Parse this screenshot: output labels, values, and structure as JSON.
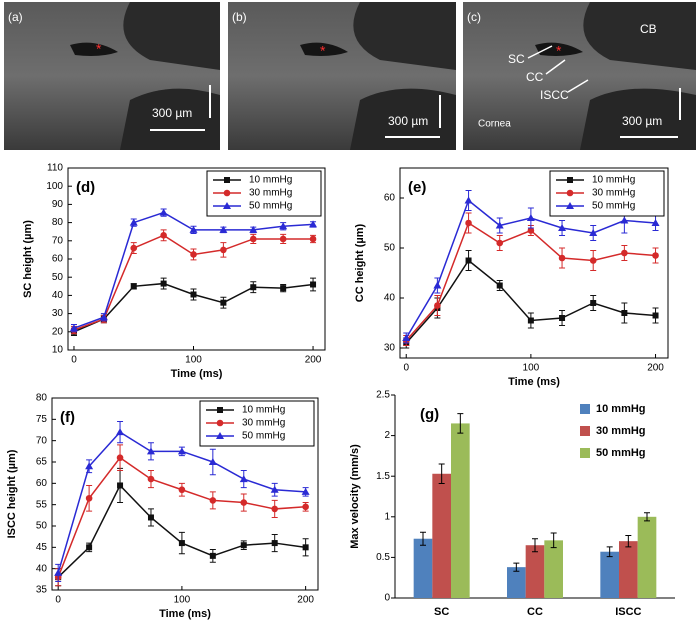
{
  "images": [
    {
      "label": "(a)",
      "asterisk": "*",
      "scale_bar": "300 µm"
    },
    {
      "label": "(b)",
      "asterisk": "*",
      "scale_bar": "300 µm"
    },
    {
      "label": "(c)",
      "asterisk": "*",
      "scale_bar": "300 µm",
      "annotations": [
        "CB",
        "SC",
        "CC",
        "ISCC",
        "Cornea"
      ]
    }
  ],
  "chart_data": [
    {
      "type": "line",
      "panel_label": "(d)",
      "xlabel": "Time (ms)",
      "ylabel": "SC height (µm)",
      "xlim": [
        -5,
        210
      ],
      "ylim": [
        10,
        110
      ],
      "xticks": [
        0,
        100,
        200
      ],
      "yticks": [
        10,
        20,
        30,
        40,
        50,
        60,
        70,
        80,
        90,
        100,
        110
      ],
      "legend": "upper right",
      "x": [
        0,
        25,
        50,
        75,
        100,
        125,
        150,
        175,
        200
      ],
      "series": [
        {
          "name": "10 mmHg",
          "color": "#111111",
          "marker": "square",
          "values": [
            20,
            27,
            45,
            46.5,
            40.5,
            36,
            44.5,
            44,
            46
          ],
          "errors": [
            2,
            2,
            1.5,
            3,
            3,
            3,
            3,
            2,
            3.5
          ]
        },
        {
          "name": "30 mmHg",
          "color": "#d42a2a",
          "marker": "circle",
          "values": [
            21,
            27,
            66,
            73,
            62.5,
            65,
            71,
            71,
            71
          ],
          "errors": [
            2,
            2,
            3,
            3,
            3,
            4,
            2.5,
            2.5,
            2
          ]
        },
        {
          "name": "50 mmHg",
          "color": "#2a2ad4",
          "marker": "triangle",
          "values": [
            22,
            28,
            80,
            85.5,
            76,
            76,
            76,
            78,
            79
          ],
          "errors": [
            2,
            2,
            2,
            2,
            2,
            1.5,
            1.5,
            2,
            1.5
          ]
        }
      ]
    },
    {
      "type": "line",
      "panel_label": "(e)",
      "xlabel": "Time (ms)",
      "ylabel": "CC height (µm)",
      "xlim": [
        -5,
        210
      ],
      "ylim": [
        28,
        66
      ],
      "xticks": [
        0,
        100,
        200
      ],
      "yticks": [
        30,
        40,
        50,
        60
      ],
      "legend": "upper right",
      "x": [
        0,
        25,
        50,
        75,
        100,
        125,
        150,
        175,
        200
      ],
      "series": [
        {
          "name": "10 mmHg",
          "color": "#111111",
          "marker": "square",
          "values": [
            31,
            38,
            47.5,
            42.5,
            35.5,
            36,
            39,
            37,
            36.5
          ],
          "errors": [
            1,
            2,
            2,
            1,
            1.5,
            1.5,
            1.5,
            2,
            1.5
          ]
        },
        {
          "name": "30 mmHg",
          "color": "#d42a2a",
          "marker": "circle",
          "values": [
            31.5,
            38.5,
            55,
            51,
            53.5,
            48,
            47.5,
            49,
            48.5
          ],
          "errors": [
            1,
            2,
            2,
            1.5,
            1,
            2,
            2,
            1.5,
            1.5
          ]
        },
        {
          "name": "50 mmHg",
          "color": "#2a2ad4",
          "marker": "triangle",
          "values": [
            32,
            42.5,
            59.5,
            54.5,
            56,
            54,
            53,
            55.5,
            55
          ],
          "errors": [
            1,
            1.5,
            2,
            1.5,
            2,
            1.5,
            1.5,
            2.5,
            1.5
          ]
        }
      ]
    },
    {
      "type": "line",
      "panel_label": "(f)",
      "xlabel": "Time (ms)",
      "ylabel": "ISCC height (µm)",
      "xlim": [
        -5,
        210
      ],
      "ylim": [
        35,
        80
      ],
      "xticks": [
        0,
        100,
        200
      ],
      "yticks": [
        35,
        40,
        45,
        50,
        55,
        60,
        65,
        70,
        75,
        80
      ],
      "legend": "upper right",
      "x": [
        0,
        25,
        50,
        75,
        100,
        125,
        150,
        175,
        200
      ],
      "series": [
        {
          "name": "10 mmHg",
          "color": "#111111",
          "marker": "square",
          "values": [
            38,
            45,
            59.5,
            52,
            46,
            43,
            45.5,
            46,
            45
          ],
          "errors": [
            2,
            1,
            4,
            2,
            2.5,
            1.5,
            1,
            2,
            2
          ]
        },
        {
          "name": "30 mmHg",
          "color": "#d42a2a",
          "marker": "circle",
          "values": [
            38,
            56.5,
            66,
            61,
            58.5,
            56,
            55.5,
            54,
            54.5
          ],
          "errors": [
            2,
            3,
            3,
            2,
            1.5,
            2,
            2,
            2,
            1
          ]
        },
        {
          "name": "50 mmHg",
          "color": "#2a2ad4",
          "marker": "triangle",
          "values": [
            39,
            64,
            72,
            67.5,
            67.5,
            65,
            61,
            58.5,
            58
          ],
          "errors": [
            2,
            1.5,
            2.5,
            2,
            1,
            3,
            2,
            1.5,
            1
          ]
        }
      ]
    },
    {
      "type": "bar",
      "panel_label": "(g)",
      "ylabel": "Max velocity (mm/s)",
      "ylim": [
        0,
        2.5
      ],
      "yticks": [
        0,
        0.5,
        1,
        1.5,
        2,
        2.5
      ],
      "legend": "upper right",
      "categories": [
        "SC",
        "CC",
        "ISCC"
      ],
      "series": [
        {
          "name": "10 mmHg",
          "color": "#4f81bd",
          "values": [
            0.73,
            0.38,
            0.57
          ],
          "errors": [
            0.08,
            0.05,
            0.06
          ]
        },
        {
          "name": "30 mmHg",
          "color": "#c0504d",
          "values": [
            1.53,
            0.65,
            0.7
          ],
          "errors": [
            0.12,
            0.08,
            0.07
          ]
        },
        {
          "name": "50 mmHg",
          "color": "#9bbb59",
          "values": [
            2.15,
            0.71,
            1.0
          ],
          "errors": [
            0.12,
            0.09,
            0.05
          ]
        }
      ]
    }
  ]
}
